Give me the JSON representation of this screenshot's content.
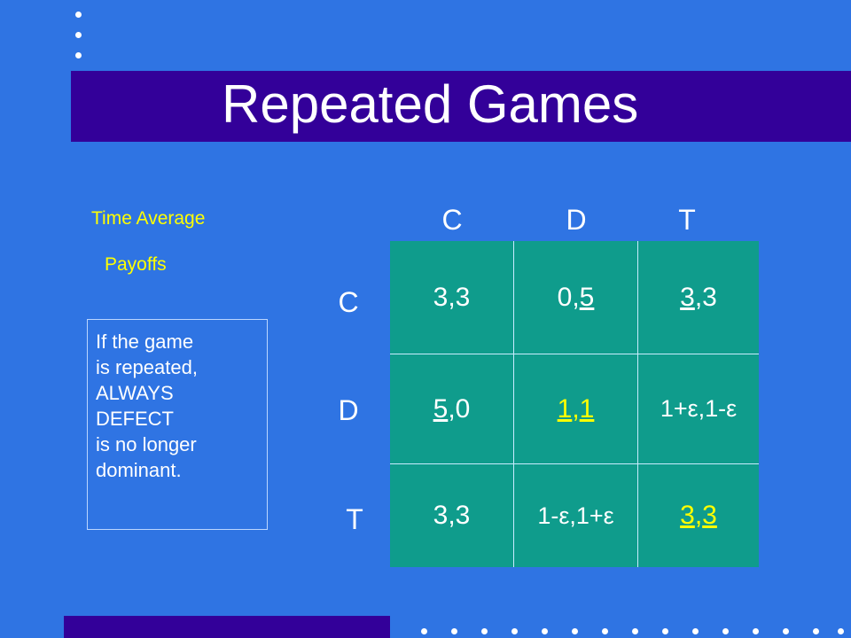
{
  "title": "Repeated Games",
  "caption": {
    "line1": "Time Average",
    "line2": "Payoffs"
  },
  "note": [
    "If the game",
    "is repeated,",
    "ALWAYS",
    "DEFECT",
    "is no longer",
    "dominant."
  ],
  "columns": [
    "C",
    "D",
    "T"
  ],
  "rows": [
    "C",
    "D",
    "T"
  ],
  "cells": {
    "c1a": "3,3",
    "c2a": "0,",
    "c2b": "5",
    "c3a": "3",
    "c3b": ",3",
    "c4a": "5",
    "c4b": ",0",
    "c5a": "1",
    "c5b": ",",
    "c5c": "1",
    "c6a": "1+ε,1-ε",
    "c7a": "3,3",
    "c8a": "1-ε,1+ε",
    "c9a": "3",
    "c9b": ",",
    "c9c": "3"
  },
  "colors": {
    "background": "#2f74e3",
    "title_bar": "#330099",
    "matrix": "#0f9c8c",
    "highlight": "#ffff00",
    "text": "#ffffff"
  }
}
